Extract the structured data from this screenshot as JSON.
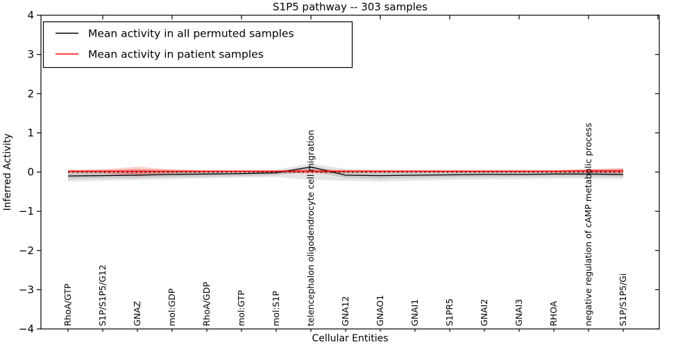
{
  "chart_data": {
    "type": "line",
    "title": "S1P5 pathway -- 303 samples",
    "xlabel": "Cellular Entities",
    "ylabel": "Inferred Activity",
    "ylim": [
      -4,
      4
    ],
    "yticks": [
      -4,
      -3,
      -2,
      -1,
      0,
      1,
      2,
      3,
      4
    ],
    "ytick_labels": [
      "−4",
      "−3",
      "−2",
      "−1",
      "0",
      "1",
      "2",
      "3",
      "4"
    ],
    "grid": false,
    "legend_position": "upper-left",
    "categories": [
      "RhoA/GTP",
      "S1P/S1P5/G12",
      "GNAZ",
      "mol:GDP",
      "RhoA/GDP",
      "mol:GTP",
      "mol:S1P",
      "telencephalon oligodendrocyte cell migration",
      "GNA12",
      "GNAO1",
      "GNAI1",
      "S1PR5",
      "GNAI2",
      "GNAI3",
      "RHOA",
      "negative regulation of cAMP metabolic process",
      "S1P/S1P5/Gi"
    ],
    "series": [
      {
        "name": "Mean activity in all permuted samples",
        "color": "#000000",
        "values": [
          -0.1,
          -0.09,
          -0.08,
          -0.06,
          -0.05,
          -0.04,
          -0.02,
          0.13,
          -0.08,
          -0.09,
          -0.08,
          -0.07,
          -0.06,
          -0.06,
          -0.05,
          -0.05,
          -0.06
        ]
      },
      {
        "name": "Mean activity in patient samples",
        "color": "#ff0000",
        "values": [
          0.02,
          0.02,
          0.02,
          0.02,
          0.02,
          0.02,
          0.02,
          0.02,
          0.02,
          0.02,
          0.02,
          0.02,
          0.02,
          0.02,
          0.02,
          0.03,
          0.03
        ]
      }
    ],
    "zero_line": {
      "value": 0,
      "style": "dotted",
      "color": "#000000"
    },
    "bands": [
      {
        "series": "Mean activity in all permuted samples",
        "level": "outer",
        "color": "rgba(0,0,0,0.10)",
        "upper": [
          0.05,
          0.05,
          0.05,
          0.04,
          0.04,
          0.04,
          0.06,
          0.22,
          0.08,
          0.06,
          0.05,
          0.05,
          0.05,
          0.05,
          0.05,
          0.07,
          0.09
        ],
        "lower": [
          -0.24,
          -0.22,
          -0.2,
          -0.18,
          -0.16,
          -0.14,
          -0.13,
          -0.2,
          -0.22,
          -0.24,
          -0.22,
          -0.2,
          -0.19,
          -0.18,
          -0.17,
          -0.17,
          -0.18
        ]
      },
      {
        "series": "Mean activity in all permuted samples",
        "level": "inner",
        "color": "rgba(0,0,0,0.12)",
        "upper": [
          -0.02,
          -0.02,
          -0.02,
          -0.01,
          -0.01,
          -0.01,
          0.01,
          0.16,
          -0.01,
          -0.02,
          -0.02,
          -0.01,
          -0.01,
          -0.01,
          -0.01,
          0.0,
          0.0
        ],
        "lower": [
          -0.18,
          -0.16,
          -0.15,
          -0.13,
          -0.12,
          -0.1,
          -0.08,
          0.02,
          -0.15,
          -0.17,
          -0.15,
          -0.14,
          -0.13,
          -0.12,
          -0.11,
          -0.11,
          -0.12
        ]
      },
      {
        "series": "Mean activity in patient samples",
        "level": "outer",
        "color": "rgba(255,0,0,0.18)",
        "upper": [
          0.06,
          0.07,
          0.14,
          0.07,
          0.05,
          0.05,
          0.05,
          0.08,
          0.06,
          0.05,
          0.05,
          0.05,
          0.05,
          0.05,
          0.05,
          0.08,
          0.1
        ],
        "lower": [
          -0.03,
          -0.04,
          -0.11,
          -0.04,
          -0.02,
          -0.02,
          -0.02,
          -0.04,
          -0.03,
          -0.02,
          -0.02,
          -0.02,
          -0.02,
          -0.02,
          -0.02,
          -0.02,
          -0.04
        ]
      },
      {
        "series": "Mean activity in patient samples",
        "level": "inner",
        "color": "rgba(255,0,0,0.25)",
        "upper": [
          0.04,
          0.05,
          0.08,
          0.05,
          0.04,
          0.04,
          0.04,
          0.05,
          0.04,
          0.04,
          0.04,
          0.04,
          0.04,
          0.04,
          0.04,
          0.06,
          0.07
        ],
        "lower": [
          -0.01,
          -0.02,
          -0.05,
          -0.02,
          -0.01,
          -0.01,
          -0.01,
          -0.02,
          -0.01,
          -0.01,
          -0.01,
          -0.01,
          -0.01,
          -0.01,
          -0.01,
          -0.01,
          -0.02
        ]
      }
    ],
    "legend": {
      "entries": [
        {
          "label": "Mean activity in all permuted samples",
          "color": "#000000"
        },
        {
          "label": "Mean activity in patient samples",
          "color": "#ff0000"
        }
      ]
    }
  }
}
